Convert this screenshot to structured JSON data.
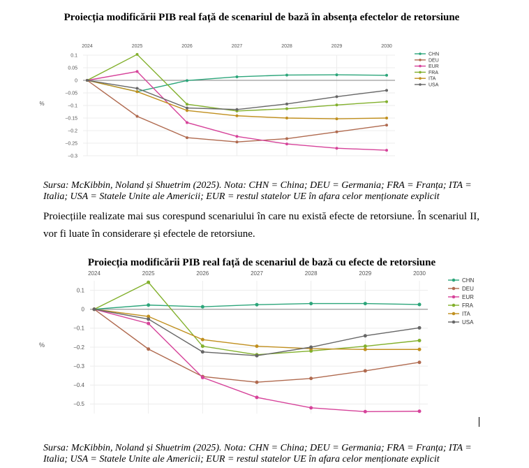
{
  "chart1": {
    "title": "Proiecția modificării PIB real față de scenariul de bază în absența efectelor de retorsiune",
    "source_note": "Sursa: McKibbin, Noland și Shuetrim (2025). Nota: CHN = China; DEU = Germania; FRA = Franța; ITA = Italia; USA = Statele Unite ale Americii; EUR = restul statelor UE în afara celor menționate explicit"
  },
  "paragraph": "Proiecțiile realizate mai sus corespund scenariului în care nu există efecte de retorsiune. În scenariul II, vor fi luate în considerare și efectele de retorsiune.",
  "chart2": {
    "title": "Proiecția modificării PIB real față de scenariul de bază cu efecte de retorsiune",
    "source_note": "Sursa: McKibbin, Noland și Shuetrim (2025). Nota: CHN = China; DEU = Germania; FRA = Franța; ITA = Italia; USA = Statele Unite ale Americii; EUR = restul statelor UE în afara celor menționate explicit"
  },
  "colors": {
    "CHN": "#2ca57a",
    "DEU": "#b06a4f",
    "EUR": "#d6439a",
    "FRA": "#82b02c",
    "ITA": "#c08f1e",
    "USA": "#666666"
  },
  "chart_data": [
    {
      "type": "line",
      "title": "Proiecția modificării PIB real față de scenariul de bază în absența efectelor de retorsiune",
      "ylabel": "%",
      "x": [
        "2024",
        "2025",
        "2026",
        "2027",
        "2028",
        "2029",
        "2030"
      ],
      "yticks": [
        0.1,
        0.05,
        0,
        -0.05,
        -0.1,
        -0.15,
        -0.2,
        -0.25,
        -0.3
      ],
      "ytick_labels": [
        "0.1",
        "0.05",
        "0",
        "−0.05",
        "−0.1",
        "−0.15",
        "−0.2",
        "−0.25",
        "−0.3"
      ],
      "ylim": [
        -0.3,
        0.1
      ],
      "legend_position": "right",
      "series": [
        {
          "name": "CHN",
          "values": [
            0,
            -0.045,
            -0.001,
            0.014,
            0.021,
            0.022,
            0.02
          ]
        },
        {
          "name": "DEU",
          "values": [
            0,
            -0.143,
            -0.228,
            -0.245,
            -0.232,
            -0.205,
            -0.178
          ]
        },
        {
          "name": "EUR",
          "values": [
            0,
            0.035,
            -0.168,
            -0.223,
            -0.253,
            -0.27,
            -0.278
          ]
        },
        {
          "name": "FRA",
          "values": [
            0,
            0.103,
            -0.095,
            -0.122,
            -0.113,
            -0.098,
            -0.085
          ]
        },
        {
          "name": "ITA",
          "values": [
            0,
            -0.045,
            -0.12,
            -0.141,
            -0.15,
            -0.153,
            -0.15
          ]
        },
        {
          "name": "USA",
          "values": [
            0,
            -0.032,
            -0.11,
            -0.116,
            -0.094,
            -0.065,
            -0.04
          ]
        }
      ]
    },
    {
      "type": "line",
      "title": "Proiecția modificării PIB real față de scenariul de bază cu efecte de retorsiune",
      "ylabel": "%",
      "x": [
        "2024",
        "2025",
        "2026",
        "2027",
        "2028",
        "2029",
        "2030"
      ],
      "yticks": [
        0.1,
        0,
        -0.1,
        -0.2,
        -0.3,
        -0.4,
        -0.5
      ],
      "ytick_labels": [
        "0.1",
        "0",
        "−0.1",
        "−0.2",
        "−0.3",
        "−0.4",
        "−0.5"
      ],
      "ylim": [
        -0.55,
        0.15
      ],
      "legend_position": "right",
      "series": [
        {
          "name": "CHN",
          "values": [
            0,
            0.022,
            0.013,
            0.024,
            0.03,
            0.03,
            0.025
          ]
        },
        {
          "name": "DEU",
          "values": [
            0,
            -0.21,
            -0.355,
            -0.385,
            -0.365,
            -0.325,
            -0.28
          ]
        },
        {
          "name": "EUR",
          "values": [
            0,
            -0.075,
            -0.36,
            -0.465,
            -0.52,
            -0.54,
            -0.538
          ]
        },
        {
          "name": "FRA",
          "values": [
            0,
            0.142,
            -0.195,
            -0.24,
            -0.22,
            -0.195,
            -0.165
          ]
        },
        {
          "name": "ITA",
          "values": [
            0,
            -0.038,
            -0.16,
            -0.195,
            -0.208,
            -0.212,
            -0.212
          ]
        },
        {
          "name": "USA",
          "values": [
            0,
            -0.052,
            -0.225,
            -0.245,
            -0.2,
            -0.14,
            -0.098
          ]
        }
      ]
    }
  ]
}
